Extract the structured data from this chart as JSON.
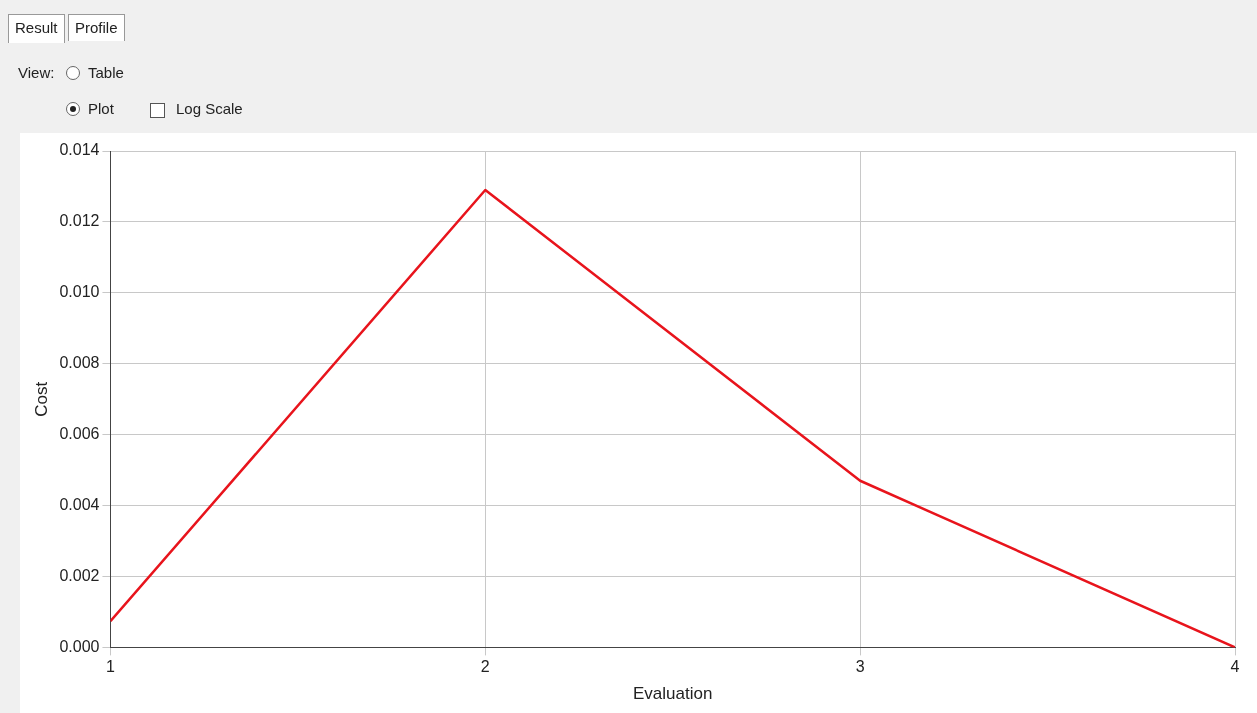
{
  "chart_data": {
    "type": "line",
    "xlabel": "Evaluation",
    "ylabel": "Cost",
    "x": [
      1,
      2,
      3,
      4
    ],
    "series": [
      {
        "color": "#e8141c",
        "values": [
          0.00074,
          0.0129,
          0.0047,
          0.0
        ]
      }
    ],
    "xlim": [
      1,
      4
    ],
    "xticks": [
      1,
      2,
      3,
      4
    ],
    "ylim": [
      0,
      0.014
    ],
    "yticks": [
      {
        "value": 0,
        "label": "0.000"
      },
      {
        "value": 0.002,
        "label": "0.002"
      },
      {
        "value": 0.004,
        "label": "0.004"
      },
      {
        "value": 0.006,
        "label": "0.006"
      },
      {
        "value": 0.008,
        "label": "0.008"
      },
      {
        "value": 0.01,
        "label": "0.010"
      },
      {
        "value": 0.012,
        "label": "0.012"
      },
      {
        "value": 0.014,
        "label": "0.014"
      }
    ],
    "grid": true,
    "legend": false,
    "marker": "none",
    "line_style": "solid",
    "annotations": [
      "Result",
      "Profile",
      "View:",
      "Table",
      "Plot",
      "Log Scale"
    ]
  }
}
